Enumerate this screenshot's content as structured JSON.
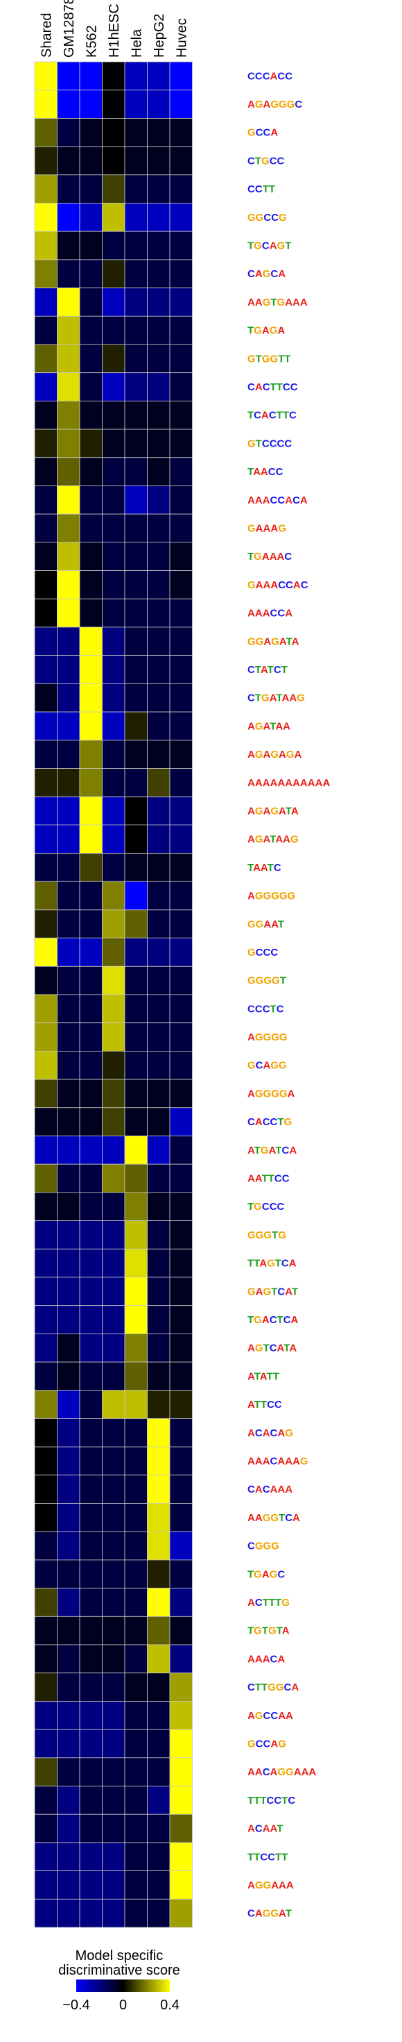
{
  "chart_data": {
    "type": "heatmap",
    "columns": [
      "Shared",
      "GM12878",
      "K562",
      "H1hESC",
      "Hela",
      "HepG2",
      "Huvec"
    ],
    "colorbar": {
      "title_line1": "Model specific",
      "title_line2": "discriminative score",
      "min": -0.4,
      "max": 0.4,
      "ticks": [
        {
          "value": -0.4,
          "label": "−0.4"
        },
        {
          "value": 0,
          "label": "0"
        },
        {
          "value": 0.4,
          "label": "0.4"
        }
      ],
      "colors": {
        "low": "#0000ff",
        "mid": "#000000",
        "high": "#ffff00"
      }
    },
    "rows": [
      {
        "motif": "CCCACC",
        "values": [
          0.4,
          -0.4,
          -0.4,
          0.0,
          -0.3,
          -0.3,
          -0.4
        ]
      },
      {
        "motif": "AGAGGGC",
        "values": [
          0.4,
          -0.4,
          -0.4,
          0.0,
          -0.3,
          -0.3,
          -0.4
        ]
      },
      {
        "motif": "GCCA",
        "values": [
          0.15,
          -0.1,
          -0.05,
          0.0,
          -0.05,
          -0.05,
          -0.05
        ]
      },
      {
        "motif": "CTGCC",
        "values": [
          0.05,
          -0.05,
          -0.05,
          0.0,
          -0.05,
          -0.05,
          -0.05
        ]
      },
      {
        "motif": "CCTT",
        "values": [
          0.25,
          -0.1,
          -0.1,
          0.1,
          -0.1,
          -0.1,
          -0.1
        ]
      },
      {
        "motif": "GGCCG",
        "values": [
          0.4,
          -0.4,
          -0.3,
          0.3,
          -0.3,
          -0.3,
          -0.3
        ]
      },
      {
        "motif": "TGCAGT",
        "values": [
          0.3,
          -0.05,
          -0.05,
          -0.1,
          -0.1,
          -0.1,
          -0.1
        ]
      },
      {
        "motif": "CAGCA",
        "values": [
          0.2,
          -0.1,
          -0.1,
          0.05,
          -0.1,
          -0.1,
          -0.1
        ]
      },
      {
        "motif": "AAGTGAAA",
        "values": [
          -0.3,
          0.4,
          -0.1,
          -0.3,
          -0.2,
          -0.2,
          -0.2
        ]
      },
      {
        "motif": "TGAGA",
        "values": [
          -0.1,
          0.3,
          -0.1,
          -0.1,
          -0.1,
          -0.1,
          -0.1
        ]
      },
      {
        "motif": "GTGGTT",
        "values": [
          0.15,
          0.3,
          -0.1,
          0.05,
          -0.1,
          -0.1,
          -0.1
        ]
      },
      {
        "motif": "CACTTCC",
        "values": [
          -0.3,
          0.35,
          -0.1,
          -0.3,
          -0.2,
          -0.2,
          -0.1
        ]
      },
      {
        "motif": "TCACTTC",
        "values": [
          -0.05,
          0.2,
          -0.05,
          -0.05,
          -0.05,
          -0.05,
          -0.05
        ]
      },
      {
        "motif": "GTCCCC",
        "values": [
          0.05,
          0.2,
          0.05,
          -0.05,
          -0.05,
          -0.05,
          -0.05
        ]
      },
      {
        "motif": "TAACC",
        "values": [
          -0.05,
          0.15,
          -0.05,
          -0.1,
          -0.1,
          -0.05,
          -0.1
        ]
      },
      {
        "motif": "AAACCACA",
        "values": [
          -0.1,
          0.4,
          -0.1,
          -0.1,
          -0.3,
          -0.2,
          -0.1
        ]
      },
      {
        "motif": "GAAAG",
        "values": [
          -0.1,
          0.2,
          -0.1,
          -0.1,
          -0.1,
          -0.1,
          -0.1
        ]
      },
      {
        "motif": "TGAAAC",
        "values": [
          -0.05,
          0.3,
          -0.05,
          -0.1,
          -0.1,
          -0.1,
          -0.05
        ]
      },
      {
        "motif": "GAAACCAC",
        "values": [
          0.0,
          0.4,
          -0.05,
          -0.1,
          -0.1,
          -0.1,
          -0.05
        ]
      },
      {
        "motif": "AAACCA",
        "values": [
          0.0,
          0.4,
          -0.05,
          -0.1,
          -0.1,
          -0.1,
          -0.1
        ]
      },
      {
        "motif": "GGAGATA",
        "values": [
          -0.2,
          -0.2,
          0.4,
          -0.2,
          -0.1,
          -0.1,
          -0.1
        ]
      },
      {
        "motif": "CTATCT",
        "values": [
          -0.2,
          -0.2,
          0.4,
          -0.2,
          -0.1,
          -0.1,
          -0.1
        ]
      },
      {
        "motif": "CTGATAAG",
        "values": [
          -0.05,
          -0.2,
          0.4,
          -0.2,
          -0.1,
          -0.1,
          -0.1
        ]
      },
      {
        "motif": "AGATAA",
        "values": [
          -0.3,
          -0.3,
          0.4,
          -0.3,
          0.05,
          -0.1,
          -0.1
        ]
      },
      {
        "motif": "AGAGAGA",
        "values": [
          -0.1,
          -0.1,
          0.2,
          -0.1,
          -0.05,
          -0.05,
          -0.05
        ]
      },
      {
        "motif": "AAAAAAAAAAA",
        "values": [
          0.05,
          0.05,
          0.2,
          -0.1,
          -0.1,
          0.1,
          -0.1
        ]
      },
      {
        "motif": "AGAGATA",
        "values": [
          -0.3,
          -0.3,
          0.4,
          -0.3,
          0.0,
          -0.2,
          -0.2
        ]
      },
      {
        "motif": "AGATAAG",
        "values": [
          -0.3,
          -0.3,
          0.4,
          -0.3,
          0.0,
          -0.2,
          -0.2
        ]
      },
      {
        "motif": "TAATC",
        "values": [
          -0.1,
          -0.1,
          0.1,
          -0.1,
          -0.05,
          -0.05,
          -0.05
        ]
      },
      {
        "motif": "AGGGGG",
        "values": [
          0.15,
          -0.1,
          -0.1,
          0.2,
          -0.4,
          -0.1,
          -0.1
        ]
      },
      {
        "motif": "GGAAT",
        "values": [
          0.05,
          -0.1,
          -0.1,
          0.25,
          0.15,
          -0.1,
          -0.1
        ]
      },
      {
        "motif": "GCCC",
        "values": [
          0.4,
          -0.3,
          -0.3,
          0.15,
          -0.2,
          -0.2,
          -0.2
        ]
      },
      {
        "motif": "GGGGT",
        "values": [
          -0.05,
          -0.1,
          -0.1,
          0.35,
          -0.1,
          -0.1,
          -0.1
        ]
      },
      {
        "motif": "CCCTC",
        "values": [
          0.25,
          -0.1,
          -0.1,
          0.3,
          -0.1,
          -0.1,
          -0.1
        ]
      },
      {
        "motif": "AGGGG",
        "values": [
          0.25,
          -0.1,
          -0.1,
          0.3,
          -0.1,
          -0.1,
          -0.1
        ]
      },
      {
        "motif": "GCAGG",
        "values": [
          0.3,
          -0.1,
          -0.1,
          0.05,
          -0.1,
          -0.1,
          -0.1
        ]
      },
      {
        "motif": "AGGGGA",
        "values": [
          0.1,
          -0.05,
          -0.05,
          0.1,
          -0.05,
          -0.05,
          -0.05
        ]
      },
      {
        "motif": "CACCTG",
        "values": [
          -0.05,
          -0.05,
          -0.05,
          0.1,
          -0.05,
          -0.05,
          -0.3
        ]
      },
      {
        "motif": "ATGATCA",
        "values": [
          -0.3,
          -0.3,
          -0.3,
          -0.3,
          0.4,
          -0.3,
          -0.1
        ]
      },
      {
        "motif": "AATTCC",
        "values": [
          0.15,
          -0.1,
          -0.1,
          0.2,
          0.15,
          -0.1,
          -0.1
        ]
      },
      {
        "motif": "TGCCC",
        "values": [
          -0.05,
          -0.05,
          -0.1,
          -0.1,
          0.2,
          -0.05,
          -0.05
        ]
      },
      {
        "motif": "GGGTG",
        "values": [
          -0.2,
          -0.2,
          -0.2,
          -0.2,
          0.3,
          -0.1,
          -0.05
        ]
      },
      {
        "motif": "TTAGTCA",
        "values": [
          -0.2,
          -0.2,
          -0.2,
          -0.2,
          0.35,
          -0.1,
          -0.05
        ]
      },
      {
        "motif": "GAGTCAT",
        "values": [
          -0.2,
          -0.2,
          -0.2,
          -0.2,
          0.4,
          -0.1,
          -0.05
        ]
      },
      {
        "motif": "TGACTCA",
        "values": [
          -0.2,
          -0.2,
          -0.2,
          -0.2,
          0.4,
          -0.1,
          -0.05
        ]
      },
      {
        "motif": "AGTCATA",
        "values": [
          -0.2,
          -0.05,
          -0.2,
          -0.2,
          0.2,
          -0.1,
          -0.05
        ]
      },
      {
        "motif": "ATATT",
        "values": [
          -0.1,
          -0.05,
          -0.1,
          -0.1,
          0.15,
          -0.05,
          -0.05
        ]
      },
      {
        "motif": "ATTCC",
        "values": [
          0.2,
          -0.3,
          -0.1,
          0.3,
          0.3,
          0.05,
          0.05
        ]
      },
      {
        "motif": "ACACAG",
        "values": [
          0.0,
          -0.2,
          -0.1,
          -0.1,
          -0.1,
          0.4,
          -0.1
        ]
      },
      {
        "motif": "AAACAAAG",
        "values": [
          0.0,
          -0.2,
          -0.1,
          -0.1,
          -0.1,
          0.4,
          -0.1
        ]
      },
      {
        "motif": "CACAAA",
        "values": [
          0.0,
          -0.2,
          -0.1,
          -0.1,
          -0.1,
          0.4,
          -0.1
        ]
      },
      {
        "motif": "AAGGTCA",
        "values": [
          0.0,
          -0.2,
          -0.1,
          -0.1,
          -0.1,
          0.35,
          -0.1
        ]
      },
      {
        "motif": "CGGG",
        "values": [
          -0.1,
          -0.2,
          -0.1,
          -0.1,
          -0.1,
          0.35,
          -0.3
        ]
      },
      {
        "motif": "TGAGC",
        "values": [
          -0.1,
          -0.1,
          -0.1,
          -0.1,
          -0.1,
          0.05,
          -0.1
        ]
      },
      {
        "motif": "ACTTTG",
        "values": [
          0.1,
          -0.2,
          -0.1,
          -0.1,
          -0.1,
          0.4,
          -0.2
        ]
      },
      {
        "motif": "TGTGTA",
        "values": [
          -0.05,
          -0.05,
          -0.05,
          -0.05,
          -0.05,
          0.15,
          -0.05
        ]
      },
      {
        "motif": "AAACA",
        "values": [
          -0.05,
          -0.1,
          -0.05,
          -0.05,
          -0.1,
          0.3,
          -0.2
        ]
      },
      {
        "motif": "CTTGGCA",
        "values": [
          0.05,
          -0.1,
          -0.1,
          -0.1,
          -0.05,
          -0.05,
          0.25
        ]
      },
      {
        "motif": "AGCCAA",
        "values": [
          -0.2,
          -0.2,
          -0.2,
          -0.2,
          -0.1,
          -0.1,
          0.3
        ]
      },
      {
        "motif": "GCCAG",
        "values": [
          -0.2,
          -0.2,
          -0.2,
          -0.2,
          -0.1,
          -0.1,
          0.4
        ]
      },
      {
        "motif": "AACAGGAAA",
        "values": [
          0.1,
          -0.1,
          -0.1,
          -0.1,
          -0.1,
          -0.1,
          0.4
        ]
      },
      {
        "motif": "TTTCCTC",
        "values": [
          -0.1,
          -0.2,
          -0.1,
          -0.1,
          -0.1,
          -0.2,
          0.4
        ]
      },
      {
        "motif": "ACAAT",
        "values": [
          -0.1,
          -0.2,
          -0.1,
          -0.1,
          -0.1,
          -0.1,
          0.15
        ]
      },
      {
        "motif": "TTCCTT",
        "values": [
          -0.2,
          -0.2,
          -0.2,
          -0.2,
          -0.1,
          -0.1,
          0.4
        ]
      },
      {
        "motif": "AGGAAA",
        "values": [
          -0.2,
          -0.2,
          -0.2,
          -0.2,
          -0.1,
          -0.1,
          0.4
        ]
      },
      {
        "motif": "CAGGAT",
        "values": [
          -0.2,
          -0.2,
          -0.2,
          -0.2,
          -0.1,
          -0.1,
          0.25
        ]
      }
    ]
  }
}
